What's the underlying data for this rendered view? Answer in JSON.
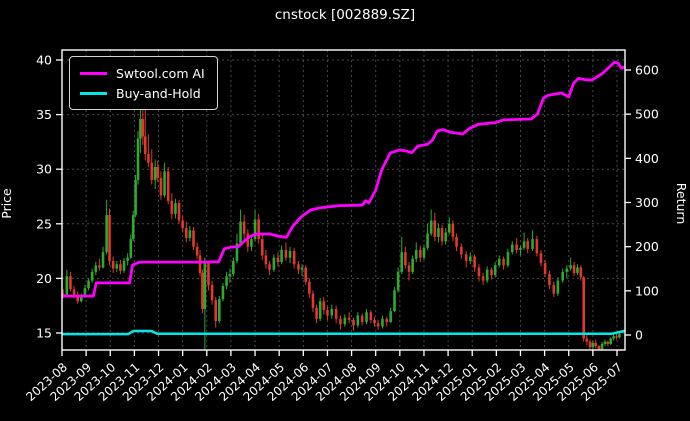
{
  "title": "cnstock [002889.SZ]",
  "legend": {
    "items": [
      {
        "label": "Swtool.com AI",
        "color": "#ff00ff"
      },
      {
        "label": "Buy-and-Hold",
        "color": "#00e8e8"
      }
    ]
  },
  "chart_data": {
    "type": "candlestick+line",
    "title": "cnstock [002889.SZ]",
    "grid": true,
    "legend_position": "upper-left",
    "x_axis": {
      "tick_labels": [
        "2023-08",
        "2023-09",
        "2023-10",
        "2023-11",
        "2023-12",
        "2024-01",
        "2024-02",
        "2024-03",
        "2024-04",
        "2024-05",
        "2024-06",
        "2024-07",
        "2024-08",
        "2024-09",
        "2024-10",
        "2024-11",
        "2024-12",
        "2025-01",
        "2025-02",
        "2025-03",
        "2025-04",
        "2025-05",
        "2025-06",
        "2025-07"
      ]
    },
    "left_axis": {
      "label": "Price",
      "ticks": [
        15,
        20,
        25,
        30,
        35,
        40
      ],
      "range": [
        13.4,
        41.0
      ]
    },
    "right_axis": {
      "label": "Return",
      "ticks": [
        0,
        100,
        200,
        300,
        400,
        500,
        600
      ],
      "range": [
        -34,
        645
      ]
    },
    "colors": {
      "background": "#000000",
      "text": "#ffffff",
      "grid": "#4a4a4a",
      "spine": "#ffffff",
      "candle_up": "#2eab2e",
      "candle_down": "#e03a2b",
      "ai_line": "#ff00ff",
      "bh_line": "#00e8e8"
    },
    "candles": [
      [
        0.05,
        18.6,
        19.0,
        18.2,
        18.4
      ],
      [
        0.2,
        18.4,
        20.8,
        18.3,
        20.2
      ],
      [
        0.35,
        20.2,
        20.6,
        18.8,
        19.0
      ],
      [
        0.5,
        19.0,
        19.3,
        18.2,
        18.5
      ],
      [
        0.65,
        18.5,
        18.8,
        17.7,
        17.9
      ],
      [
        0.8,
        17.9,
        18.6,
        17.8,
        18.3
      ],
      [
        0.95,
        18.3,
        19.4,
        18.2,
        19.1
      ],
      [
        1.1,
        19.1,
        20.0,
        18.9,
        19.8
      ],
      [
        1.25,
        19.8,
        20.9,
        19.6,
        20.6
      ],
      [
        1.4,
        20.6,
        21.5,
        20.3,
        21.2
      ],
      [
        1.55,
        21.2,
        21.8,
        20.7,
        21.0
      ],
      [
        1.7,
        21.0,
        22.9,
        20.9,
        22.4
      ],
      [
        1.85,
        22.4,
        27.2,
        22.2,
        25.8
      ],
      [
        1.97,
        25.8,
        26.4,
        21.2,
        21.6
      ],
      [
        2.12,
        21.6,
        22.0,
        20.5,
        20.9
      ],
      [
        2.27,
        20.9,
        21.6,
        20.6,
        21.3
      ],
      [
        2.42,
        21.3,
        21.7,
        20.4,
        20.7
      ],
      [
        2.57,
        20.7,
        21.9,
        20.5,
        21.6
      ],
      [
        2.72,
        21.6,
        22.3,
        21.2,
        21.9
      ],
      [
        2.85,
        21.9,
        24.0,
        21.8,
        23.6
      ],
      [
        2.95,
        23.6,
        26.2,
        23.4,
        25.8
      ],
      [
        3.05,
        25.8,
        29.5,
        25.6,
        29.0
      ],
      [
        3.15,
        29.0,
        33.5,
        28.6,
        32.8
      ],
      [
        3.25,
        32.8,
        36.4,
        31.5,
        34.6
      ],
      [
        3.35,
        34.6,
        35.9,
        32.2,
        33.0
      ],
      [
        3.45,
        33.0,
        35.6,
        30.8,
        31.4
      ],
      [
        3.58,
        31.4,
        33.2,
        30.2,
        30.6
      ],
      [
        3.72,
        30.6,
        31.8,
        28.6,
        29.0
      ],
      [
        3.86,
        29.0,
        30.9,
        28.2,
        30.2
      ],
      [
        3.97,
        30.2,
        30.8,
        28.8,
        29.2
      ],
      [
        4.1,
        29.2,
        29.8,
        27.2,
        27.6
      ],
      [
        4.25,
        27.6,
        30.6,
        27.4,
        29.8
      ],
      [
        4.4,
        29.8,
        30.2,
        26.8,
        27.1
      ],
      [
        4.55,
        27.1,
        27.8,
        25.4,
        25.9
      ],
      [
        4.7,
        25.9,
        27.3,
        25.5,
        26.9
      ],
      [
        4.85,
        26.9,
        27.2,
        25.0,
        25.3
      ],
      [
        5.0,
        25.3,
        25.7,
        24.2,
        24.6
      ],
      [
        5.15,
        24.6,
        25.2,
        23.3,
        23.7
      ],
      [
        5.3,
        23.7,
        24.8,
        23.4,
        24.4
      ],
      [
        5.45,
        24.4,
        24.7,
        22.6,
        22.9
      ],
      [
        5.6,
        22.9,
        23.3,
        21.8,
        22.1
      ],
      [
        5.72,
        22.1,
        22.6,
        20.2,
        20.5
      ],
      [
        5.82,
        20.5,
        20.8,
        16.8,
        17.2
      ],
      [
        5.92,
        17.2,
        21.9,
        13.5,
        21.4
      ],
      [
        6.07,
        21.4,
        21.6,
        18.9,
        19.4
      ],
      [
        6.22,
        19.4,
        19.8,
        17.6,
        18.0
      ],
      [
        6.37,
        18.0,
        18.3,
        15.5,
        16.1
      ],
      [
        6.52,
        16.1,
        18.4,
        15.9,
        18.1
      ],
      [
        6.67,
        18.1,
        19.6,
        17.9,
        19.3
      ],
      [
        6.82,
        19.3,
        20.6,
        19.0,
        20.2
      ],
      [
        6.96,
        20.2,
        20.9,
        19.6,
        20.4
      ],
      [
        7.1,
        20.4,
        21.9,
        20.2,
        21.6
      ],
      [
        7.25,
        21.6,
        24.1,
        21.4,
        23.2
      ],
      [
        7.4,
        23.2,
        26.3,
        23.0,
        25.2
      ],
      [
        7.55,
        25.2,
        25.8,
        23.6,
        24.1
      ],
      [
        7.7,
        24.1,
        24.5,
        22.4,
        22.9
      ],
      [
        7.85,
        22.9,
        24.0,
        22.5,
        23.6
      ],
      [
        8.0,
        23.6,
        26.3,
        23.4,
        25.4
      ],
      [
        8.15,
        25.4,
        25.9,
        23.2,
        23.6
      ],
      [
        8.3,
        23.6,
        24.0,
        21.7,
        22.1
      ],
      [
        8.45,
        22.1,
        22.6,
        20.9,
        21.3
      ],
      [
        8.6,
        21.3,
        21.6,
        20.3,
        20.8
      ],
      [
        8.78,
        20.8,
        22.2,
        20.6,
        21.9
      ],
      [
        8.95,
        21.9,
        22.4,
        21.1,
        21.5
      ],
      [
        9.1,
        21.5,
        23.0,
        21.3,
        22.6
      ],
      [
        9.28,
        22.6,
        23.3,
        21.6,
        21.9
      ],
      [
        9.45,
        21.9,
        22.9,
        21.4,
        22.5
      ],
      [
        9.62,
        22.5,
        22.8,
        20.9,
        21.3
      ],
      [
        9.8,
        21.3,
        21.6,
        20.4,
        20.8
      ],
      [
        9.95,
        20.8,
        21.3,
        20.2,
        21.0
      ],
      [
        10.1,
        21.0,
        21.2,
        19.4,
        19.7
      ],
      [
        10.25,
        19.7,
        20.0,
        18.2,
        18.6
      ],
      [
        10.4,
        18.6,
        18.9,
        16.9,
        17.3
      ],
      [
        10.55,
        17.3,
        17.6,
        15.9,
        16.3
      ],
      [
        10.7,
        16.3,
        18.2,
        16.1,
        17.9
      ],
      [
        10.85,
        17.9,
        18.3,
        16.7,
        17.1
      ],
      [
        11.0,
        17.1,
        17.4,
        16.2,
        16.6
      ],
      [
        11.18,
        16.6,
        17.6,
        16.3,
        17.2
      ],
      [
        11.36,
        17.2,
        17.5,
        15.9,
        16.3
      ],
      [
        11.54,
        16.3,
        16.6,
        15.3,
        15.8
      ],
      [
        11.72,
        15.8,
        16.7,
        15.6,
        16.4
      ],
      [
        11.9,
        16.4,
        16.9,
        15.9,
        16.2
      ],
      [
        12.08,
        16.2,
        16.4,
        15.2,
        15.7
      ],
      [
        12.26,
        15.7,
        16.9,
        15.5,
        16.6
      ],
      [
        12.44,
        16.6,
        16.8,
        15.7,
        16.0
      ],
      [
        12.62,
        16.0,
        17.2,
        15.8,
        16.9
      ],
      [
        12.8,
        16.9,
        17.1,
        15.9,
        16.2
      ],
      [
        12.95,
        16.2,
        16.5,
        15.6,
        15.9
      ],
      [
        13.1,
        15.9,
        16.2,
        15.3,
        15.6
      ],
      [
        13.28,
        15.6,
        16.6,
        15.4,
        16.3
      ],
      [
        13.46,
        16.3,
        16.5,
        15.6,
        16.0
      ],
      [
        13.62,
        16.0,
        17.3,
        15.9,
        17.0
      ],
      [
        13.78,
        17.0,
        19.2,
        16.9,
        18.9
      ],
      [
        13.93,
        18.9,
        21.0,
        18.7,
        20.6
      ],
      [
        14.08,
        20.6,
        23.8,
        20.4,
        22.4
      ],
      [
        14.23,
        22.4,
        22.9,
        20.9,
        21.2
      ],
      [
        14.38,
        21.2,
        21.5,
        19.8,
        20.6
      ],
      [
        14.53,
        20.6,
        22.1,
        20.4,
        21.8
      ],
      [
        14.68,
        21.8,
        23.3,
        21.5,
        22.6
      ],
      [
        14.85,
        22.6,
        23.0,
        21.5,
        21.9
      ],
      [
        15.0,
        21.9,
        23.1,
        21.7,
        22.8
      ],
      [
        15.15,
        22.8,
        25.0,
        22.6,
        24.1
      ],
      [
        15.3,
        24.1,
        26.3,
        23.9,
        25.3
      ],
      [
        15.45,
        25.3,
        26.0,
        23.4,
        23.8
      ],
      [
        15.6,
        23.8,
        25.0,
        23.3,
        24.6
      ],
      [
        15.75,
        24.6,
        24.9,
        23.0,
        23.4
      ],
      [
        15.9,
        23.4,
        24.6,
        23.1,
        24.2
      ],
      [
        16.05,
        24.2,
        25.6,
        24.0,
        25.0
      ],
      [
        16.2,
        25.0,
        25.3,
        23.4,
        23.8
      ],
      [
        16.35,
        23.8,
        24.1,
        22.5,
        22.9
      ],
      [
        16.55,
        22.9,
        23.2,
        21.8,
        22.2
      ],
      [
        16.75,
        22.2,
        22.5,
        21.0,
        21.6
      ],
      [
        16.92,
        21.6,
        22.4,
        21.3,
        22.0
      ],
      [
        17.1,
        22.0,
        22.2,
        20.6,
        21.0
      ],
      [
        17.28,
        21.0,
        21.3,
        19.7,
        20.2
      ],
      [
        17.45,
        20.2,
        20.5,
        19.4,
        19.8
      ],
      [
        17.62,
        19.8,
        21.1,
        19.6,
        20.8
      ],
      [
        17.8,
        20.8,
        21.0,
        19.9,
        20.3
      ],
      [
        17.95,
        20.3,
        21.5,
        20.1,
        21.2
      ],
      [
        18.12,
        21.2,
        22.1,
        21.0,
        21.8
      ],
      [
        18.3,
        21.8,
        22.0,
        20.8,
        21.2
      ],
      [
        18.48,
        21.2,
        22.7,
        21.0,
        22.4
      ],
      [
        18.66,
        22.4,
        23.4,
        22.2,
        23.1
      ],
      [
        18.84,
        23.1,
        23.7,
        22.3,
        22.6
      ],
      [
        19.0,
        22.6,
        23.0,
        22.1,
        22.8
      ],
      [
        19.15,
        22.8,
        24.2,
        22.6,
        23.4
      ],
      [
        19.3,
        23.4,
        23.7,
        22.3,
        22.7
      ],
      [
        19.5,
        22.7,
        24.4,
        22.5,
        23.6
      ],
      [
        19.68,
        23.6,
        23.9,
        22.0,
        22.3
      ],
      [
        19.85,
        22.3,
        22.6,
        21.1,
        21.4
      ],
      [
        20.02,
        21.4,
        21.7,
        20.1,
        20.4
      ],
      [
        20.2,
        20.4,
        20.7,
        19.0,
        19.4
      ],
      [
        20.38,
        19.4,
        19.7,
        18.3,
        18.6
      ],
      [
        20.55,
        18.6,
        20.1,
        18.4,
        19.8
      ],
      [
        20.75,
        19.8,
        20.9,
        19.6,
        20.6
      ],
      [
        20.92,
        20.6,
        21.2,
        20.0,
        20.9
      ],
      [
        21.08,
        20.9,
        21.9,
        20.7,
        21.2
      ],
      [
        21.22,
        21.2,
        21.5,
        20.2,
        20.5
      ],
      [
        21.36,
        20.5,
        21.3,
        20.3,
        21.0
      ],
      [
        21.5,
        21.0,
        21.2,
        19.8,
        20.1
      ],
      [
        21.62,
        20.1,
        20.2,
        14.2,
        14.5
      ],
      [
        21.75,
        14.5,
        14.9,
        13.9,
        14.2
      ],
      [
        21.88,
        14.2,
        14.4,
        13.5,
        13.7
      ],
      [
        22.0,
        13.7,
        14.3,
        13.4,
        14.1
      ],
      [
        22.12,
        14.1,
        14.4,
        13.6,
        13.8
      ],
      [
        22.25,
        13.8,
        13.9,
        13.3,
        13.5
      ],
      [
        22.38,
        13.5,
        14.2,
        13.4,
        14.0
      ],
      [
        22.5,
        14.0,
        14.4,
        13.8,
        14.2
      ],
      [
        22.62,
        14.2,
        14.3,
        13.8,
        14.0
      ],
      [
        22.74,
        14.0,
        14.6,
        13.9,
        14.5
      ],
      [
        22.86,
        14.5,
        14.9,
        14.3,
        14.7
      ],
      [
        22.98,
        14.7,
        15.0,
        14.4,
        14.6
      ],
      [
        23.1,
        14.6,
        15.1,
        14.5,
        14.9
      ]
    ],
    "series": [
      {
        "name": "Swtool.com AI",
        "axis": "right",
        "color": "#ff00ff",
        "width": 2.8,
        "points": [
          [
            0,
            88
          ],
          [
            1.3,
            88
          ],
          [
            1.42,
            118
          ],
          [
            2.8,
            118
          ],
          [
            2.92,
            158
          ],
          [
            3.2,
            165
          ],
          [
            5.9,
            165
          ],
          [
            6.5,
            166
          ],
          [
            6.72,
            195
          ],
          [
            7.0,
            199
          ],
          [
            7.3,
            200
          ],
          [
            7.58,
            214
          ],
          [
            7.8,
            223
          ],
          [
            8.0,
            228
          ],
          [
            8.6,
            229
          ],
          [
            8.95,
            224
          ],
          [
            9.3,
            221
          ],
          [
            9.55,
            245
          ],
          [
            9.9,
            267
          ],
          [
            10.3,
            283
          ],
          [
            10.7,
            288
          ],
          [
            11.5,
            293
          ],
          [
            12.45,
            294
          ],
          [
            12.58,
            304
          ],
          [
            12.72,
            299
          ],
          [
            13.0,
            328
          ],
          [
            13.25,
            374
          ],
          [
            13.6,
            412
          ],
          [
            14.0,
            419
          ],
          [
            14.3,
            416
          ],
          [
            14.5,
            413
          ],
          [
            14.75,
            428
          ],
          [
            15.15,
            432
          ],
          [
            15.35,
            441
          ],
          [
            15.55,
            462
          ],
          [
            15.8,
            465
          ],
          [
            16.1,
            459
          ],
          [
            16.6,
            455
          ],
          [
            16.9,
            468
          ],
          [
            17.25,
            477
          ],
          [
            17.95,
            481
          ],
          [
            18.3,
            487
          ],
          [
            19.45,
            489
          ],
          [
            19.7,
            500
          ],
          [
            19.95,
            536
          ],
          [
            20.15,
            543
          ],
          [
            20.7,
            548
          ],
          [
            21.0,
            539
          ],
          [
            21.2,
            570
          ],
          [
            21.4,
            581
          ],
          [
            21.7,
            578
          ],
          [
            21.95,
            577
          ],
          [
            22.15,
            584
          ],
          [
            22.4,
            592
          ],
          [
            22.7,
            608
          ],
          [
            22.9,
            618
          ],
          [
            23.05,
            615
          ],
          [
            23.18,
            604
          ],
          [
            23.3,
            607
          ]
        ]
      },
      {
        "name": "Buy-and-Hold",
        "axis": "right",
        "color": "#00e8e8",
        "width": 2.5,
        "points": [
          [
            0,
            2
          ],
          [
            2.75,
            2
          ],
          [
            2.95,
            9
          ],
          [
            3.7,
            9
          ],
          [
            3.95,
            3
          ],
          [
            10,
            3
          ],
          [
            16,
            3
          ],
          [
            20,
            3
          ],
          [
            22.8,
            3
          ],
          [
            23.3,
            9
          ]
        ]
      }
    ]
  }
}
